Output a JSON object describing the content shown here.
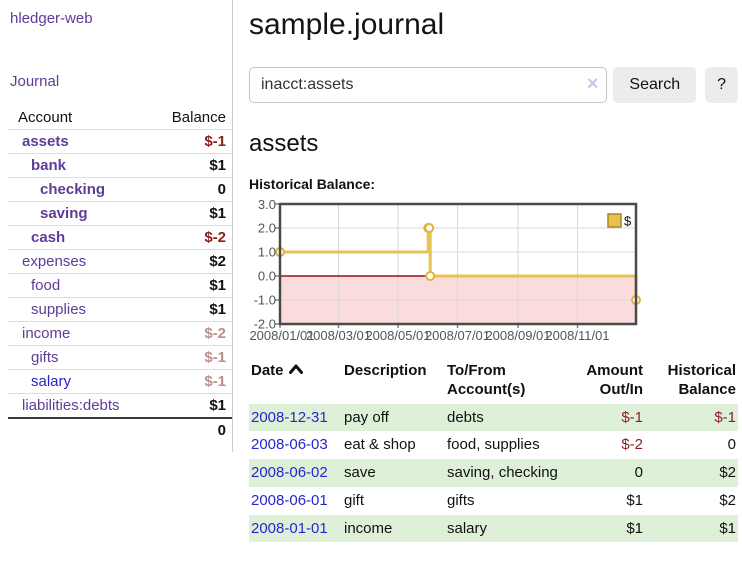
{
  "brand": "hledger-web",
  "nav": {
    "journal": "Journal"
  },
  "sidebar": {
    "account_header": "Account",
    "balance_header": "Balance",
    "accounts": [
      {
        "name": "assets",
        "balance": "$-1"
      },
      {
        "name": "bank",
        "balance": "$1"
      },
      {
        "name": "checking",
        "balance": "0"
      },
      {
        "name": "saving",
        "balance": "$1"
      },
      {
        "name": "cash",
        "balance": "$-2"
      },
      {
        "name": "expenses",
        "balance": "$2"
      },
      {
        "name": "food",
        "balance": "$1"
      },
      {
        "name": "supplies",
        "balance": "$1"
      },
      {
        "name": "income",
        "balance": "$-2"
      },
      {
        "name": "gifts",
        "balance": "$-1"
      },
      {
        "name": "salary",
        "balance": "$-1"
      },
      {
        "name": "liabilities:debts",
        "balance": "$1"
      }
    ],
    "total": "0"
  },
  "page": {
    "title": "sample.journal",
    "account_heading": "assets",
    "chart_title": "Historical Balance:"
  },
  "search": {
    "query": "inacct:assets",
    "clear": "×",
    "submit": "Search",
    "help": "?"
  },
  "chart_data": {
    "type": "line",
    "subtype": "step",
    "title": "Historical Balance:",
    "series": [
      {
        "name": "$",
        "points": [
          {
            "date": "2008-01-01",
            "value": 1
          },
          {
            "date": "2008-06-01",
            "value": 2
          },
          {
            "date": "2008-06-02",
            "value": 2
          },
          {
            "date": "2008-06-03",
            "value": 0
          },
          {
            "date": "2008-12-31",
            "value": -1
          }
        ]
      }
    ],
    "xlim": [
      "2008-01-01",
      "2008-12-31"
    ],
    "ylim": [
      -2,
      3
    ],
    "y_tick_labels": [
      "3.0",
      "2.0",
      "1.0",
      "0.0",
      "-1.0",
      "-2.0"
    ],
    "x_tick_labels": [
      "2008/01/01",
      "2008/03/01",
      "2008/05/01",
      "2008/07/01",
      "2008/09/01",
      "2008/11/01"
    ],
    "legend": {
      "label": "$",
      "position": "top-right"
    },
    "grid": true,
    "negative_region_shaded": true,
    "colors": {
      "line": "#e7c34f",
      "negative_region": "#fbdcdc",
      "zero_line": "#941414"
    }
  },
  "register": {
    "headers": {
      "date": "Date",
      "description": "Description",
      "account": "To/From Account(s)",
      "amount": "Amount Out/In",
      "balance": "Historical Balance"
    },
    "rows": [
      {
        "date": "2008-12-31",
        "description": "pay off",
        "account": "debts",
        "amount": "$-1",
        "balance": "$-1"
      },
      {
        "date": "2008-06-03",
        "description": "eat & shop",
        "account": "food, supplies",
        "amount": "$-2",
        "balance": "0"
      },
      {
        "date": "2008-06-02",
        "description": "save",
        "account": "saving, checking",
        "amount": "0",
        "balance": "$2"
      },
      {
        "date": "2008-06-01",
        "description": "gift",
        "account": "gifts",
        "amount": "$1",
        "balance": "$2"
      },
      {
        "date": "2008-01-01",
        "description": "income",
        "account": "salary",
        "amount": "$1",
        "balance": "$1"
      }
    ]
  }
}
